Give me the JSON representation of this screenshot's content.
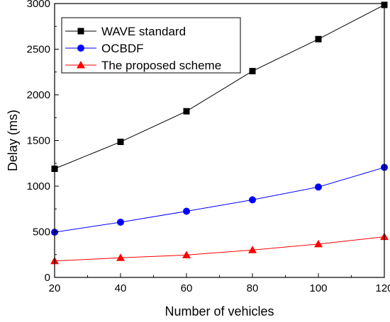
{
  "chart_data": {
    "type": "line",
    "title": "",
    "xlabel": "Number of vehicles",
    "ylabel": "Delay (ms)",
    "xlim": [
      20,
      120
    ],
    "ylim": [
      0,
      3000
    ],
    "x_ticks": [
      20,
      40,
      60,
      80,
      100,
      120
    ],
    "y_ticks": [
      0,
      500,
      1000,
      1500,
      2000,
      2500,
      3000
    ],
    "grid": false,
    "legend_position": "top-left",
    "x": [
      20,
      40,
      60,
      80,
      100,
      120
    ],
    "series": [
      {
        "name": "WAVE standard",
        "values": [
          1190,
          1485,
          1820,
          2260,
          2610,
          2985
        ],
        "color": "#000000",
        "marker": "square"
      },
      {
        "name": "OCBDF",
        "values": [
          495,
          605,
          725,
          850,
          990,
          1205
        ],
        "color": "#0000ff",
        "marker": "circle"
      },
      {
        "name": "The proposed scheme",
        "values": [
          180,
          215,
          245,
          300,
          365,
          445
        ],
        "color": "#ff0000",
        "marker": "triangle"
      }
    ]
  }
}
